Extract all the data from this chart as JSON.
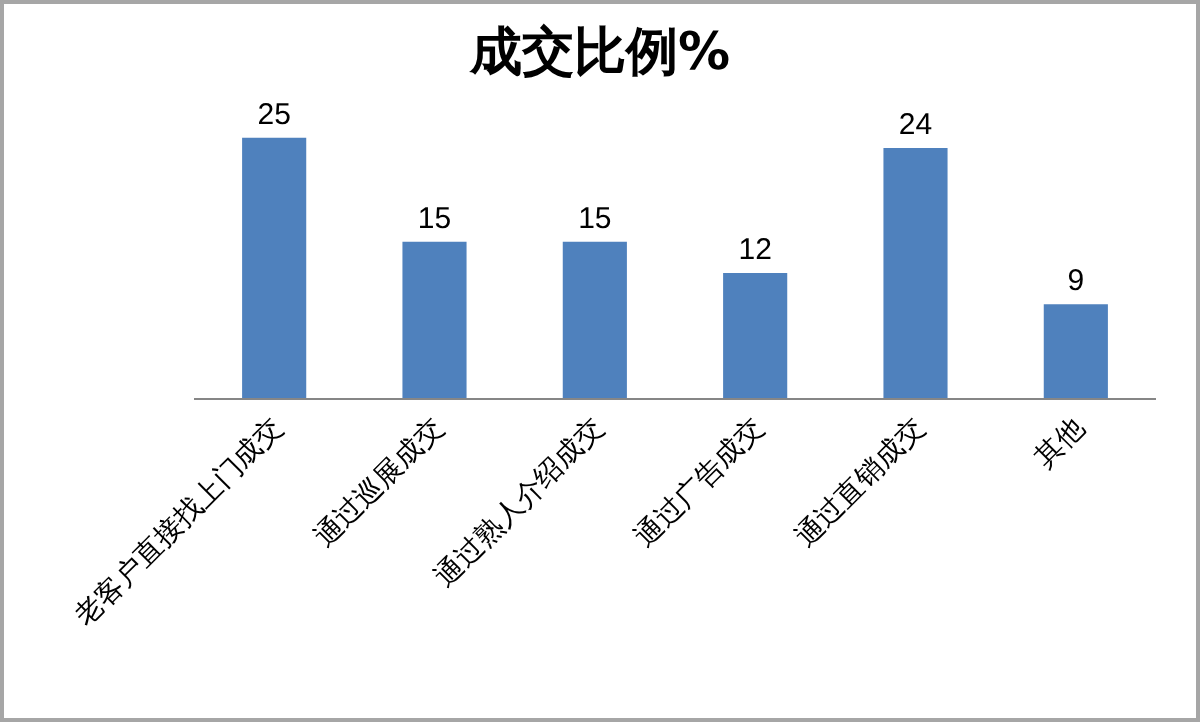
{
  "chart_data": {
    "type": "bar",
    "title": "成交比例%",
    "categories": [
      "老客户直接找上门成交",
      "通过巡展成交",
      "通过熟人介绍成交",
      "通过广告成交",
      "通过直销成交",
      "其他"
    ],
    "values": [
      25,
      15,
      15,
      12,
      24,
      9
    ],
    "color": "#4f81bd",
    "data_labels": true,
    "grid": false,
    "legend": false,
    "tick_labels": "x"
  }
}
